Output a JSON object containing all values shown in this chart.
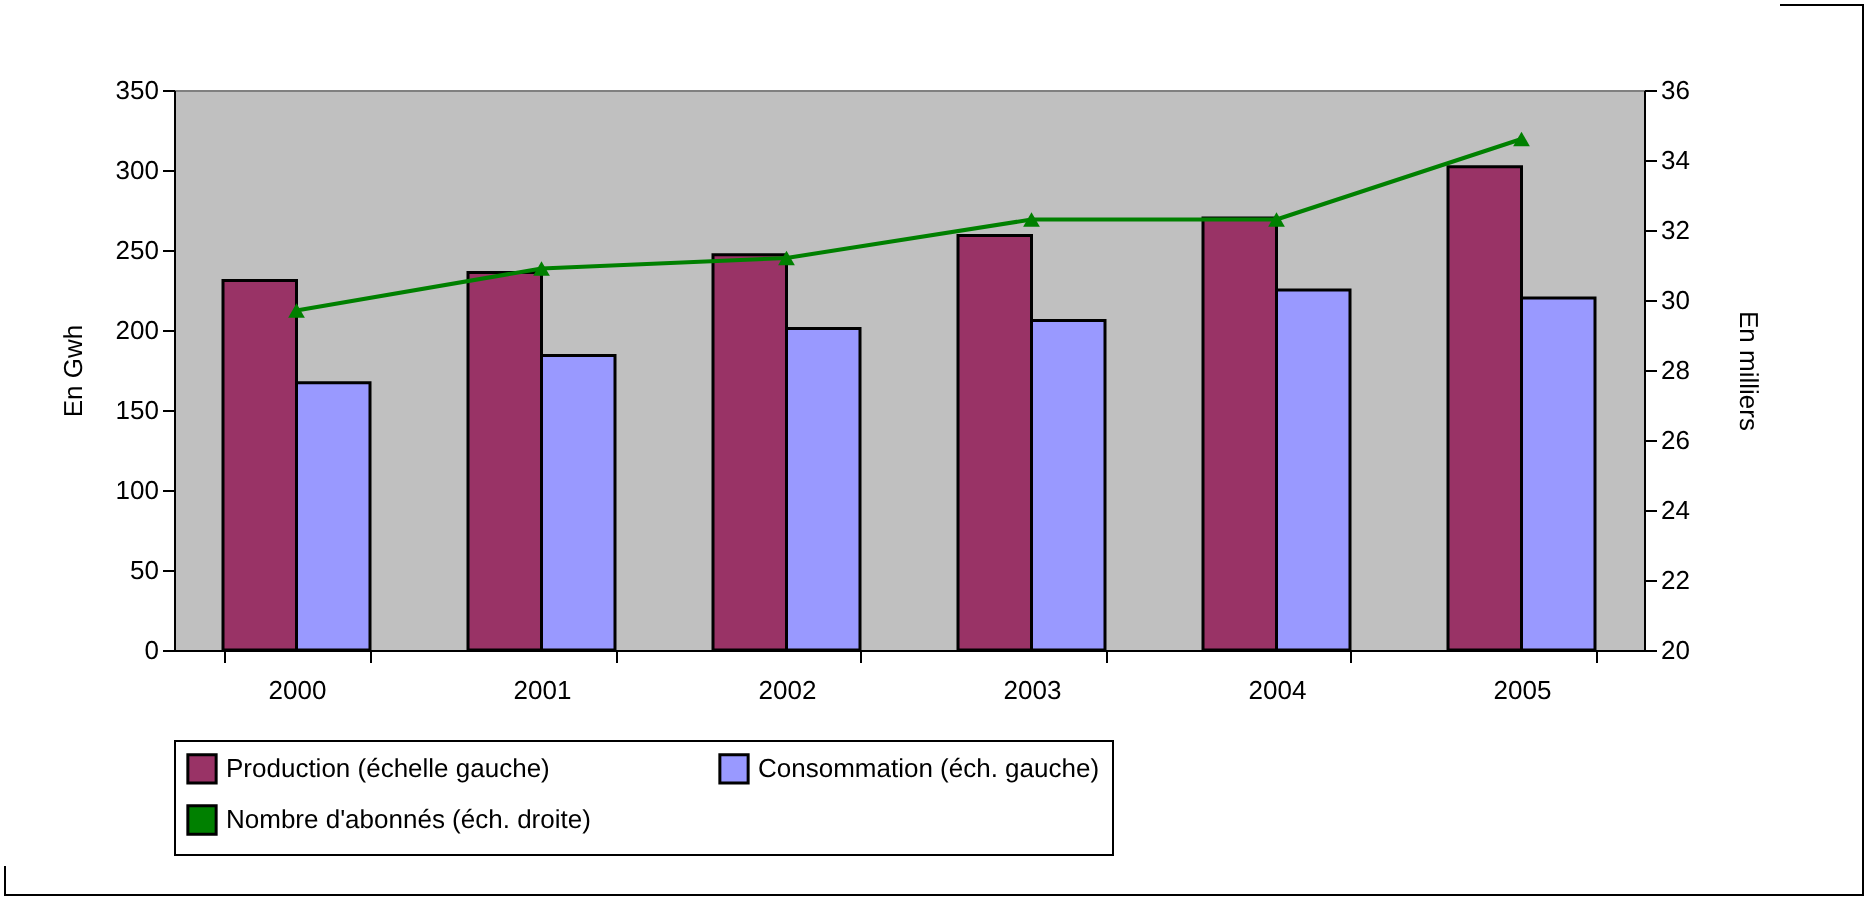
{
  "chart_data": {
    "type": "bar",
    "categories": [
      "2000",
      "2001",
      "2002",
      "2003",
      "2004",
      "2005"
    ],
    "series": [
      {
        "name": "Production (échelle gauche)",
        "color": "#993366",
        "values": [
          231,
          236,
          247,
          259,
          270,
          302
        ]
      },
      {
        "name": "Consommation (éch. gauche)",
        "color": "#9999ff",
        "values": [
          167,
          184,
          201,
          206,
          225,
          220
        ]
      },
      {
        "name": "Nombre d'abonnés (éch. droite)",
        "color": "#008000",
        "type": "line",
        "axis": "y2",
        "marker": "triangle",
        "values": [
          29.7,
          30.9,
          31.2,
          32.3,
          32.3,
          34.6
        ]
      }
    ],
    "ylabel": "En Gwh",
    "y2label": "En milliers",
    "ylim": [
      0,
      350
    ],
    "yticks": [
      0,
      50,
      100,
      150,
      200,
      250,
      300,
      350
    ],
    "y2lim": [
      20,
      36
    ],
    "y2ticks": [
      20,
      22,
      24,
      26,
      28,
      30,
      32,
      34,
      36
    ],
    "grid": false,
    "legend": "bottom"
  }
}
